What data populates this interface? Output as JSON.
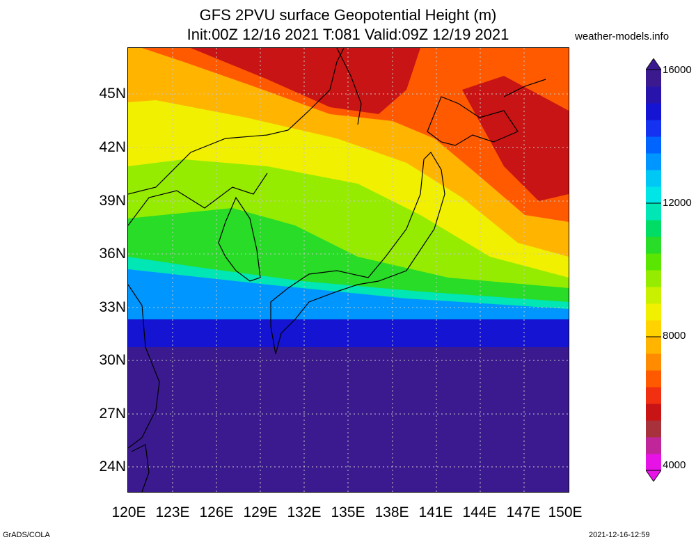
{
  "header": {
    "title_line1": "GFS 2PVU surface Geopotential Height (m)",
    "title_line2": "Init:00Z 12/16 2021 T:081 Valid:09Z 12/19 2021",
    "site": "weather-models.info"
  },
  "axes": {
    "lat_labels": [
      "45N",
      "42N",
      "39N",
      "36N",
      "33N",
      "30N",
      "27N",
      "24N"
    ],
    "lon_labels": [
      "120E",
      "123E",
      "126E",
      "129E",
      "132E",
      "135E",
      "138E",
      "141E",
      "144E",
      "147E",
      "150E"
    ]
  },
  "colorbar": {
    "labels": [
      "16000",
      "12000",
      "8000",
      "4000"
    ],
    "colors": [
      "#e612e6",
      "#c0259a",
      "#a8323c",
      "#c81414",
      "#f03010",
      "#ff5a00",
      "#ff8c00",
      "#ffb400",
      "#ffd200",
      "#f0f000",
      "#c8f000",
      "#96ec00",
      "#5ae600",
      "#28dc28",
      "#00dc64",
      "#00e6b4",
      "#00e6e6",
      "#00c8f5",
      "#0096ff",
      "#0064ff",
      "#1432f0",
      "#1414d2",
      "#2814aa",
      "#3a1a8e"
    ]
  },
  "footer": {
    "left": "GrADS/COLA",
    "right": "2021-12-16-12:59"
  }
}
